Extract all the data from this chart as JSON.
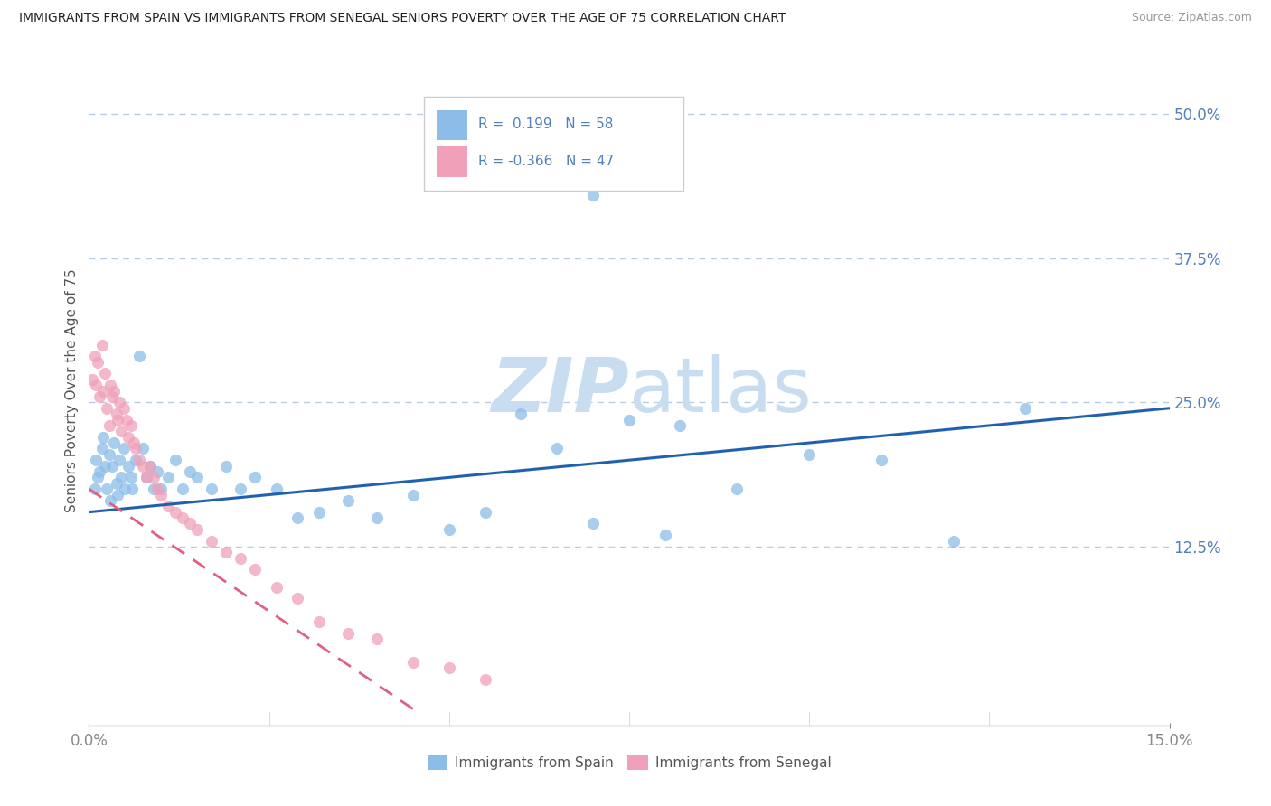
{
  "title": "IMMIGRANTS FROM SPAIN VS IMMIGRANTS FROM SENEGAL SENIORS POVERTY OVER THE AGE OF 75 CORRELATION CHART",
  "source": "Source: ZipAtlas.com",
  "ylabel": "Seniors Poverty Over the Age of 75",
  "xlim": [
    0.0,
    0.15
  ],
  "ylim": [
    -0.03,
    0.55
  ],
  "y_tick_vals": [
    0.125,
    0.25,
    0.375,
    0.5
  ],
  "y_tick_labels": [
    "12.5%",
    "25.0%",
    "37.5%",
    "50.0%"
  ],
  "x_tick_vals": [
    0.0,
    0.15
  ],
  "x_tick_labels": [
    "0.0%",
    "15.0%"
  ],
  "spain_color": "#8bbde8",
  "senegal_color": "#f0a0b8",
  "spain_line_color": "#2060b0",
  "senegal_line_color": "#e06080",
  "grid_color": "#b8cce4",
  "tick_color": "#5080c0",
  "watermark_color": "#c8ddf0",
  "legend_r_spain": "R =  0.199",
  "legend_n_spain": "N = 58",
  "legend_r_senegal": "R = -0.366",
  "legend_n_senegal": "N = 47",
  "legend_bottom_spain": "Immigrants from Spain",
  "legend_bottom_senegal": "Immigrants from Senegal",
  "spain_line_x": [
    0.0,
    0.15
  ],
  "spain_line_y": [
    0.155,
    0.245
  ],
  "senegal_line_x": [
    0.0,
    0.046
  ],
  "senegal_line_y": [
    0.175,
    -0.02
  ],
  "spain_x": [
    0.0008,
    0.001,
    0.0012,
    0.0015,
    0.0018,
    0.002,
    0.0022,
    0.0025,
    0.0028,
    0.003,
    0.0032,
    0.0035,
    0.0038,
    0.004,
    0.0042,
    0.0045,
    0.0048,
    0.005,
    0.0055,
    0.0058,
    0.006,
    0.0065,
    0.007,
    0.0075,
    0.008,
    0.0085,
    0.009,
    0.0095,
    0.01,
    0.011,
    0.012,
    0.013,
    0.014,
    0.015,
    0.017,
    0.019,
    0.021,
    0.023,
    0.026,
    0.029,
    0.032,
    0.036,
    0.04,
    0.045,
    0.05,
    0.055,
    0.06,
    0.065,
    0.07,
    0.075,
    0.08,
    0.09,
    0.1,
    0.11,
    0.12,
    0.13,
    0.07,
    0.082
  ],
  "spain_y": [
    0.175,
    0.2,
    0.185,
    0.19,
    0.21,
    0.22,
    0.195,
    0.175,
    0.205,
    0.165,
    0.195,
    0.215,
    0.18,
    0.17,
    0.2,
    0.185,
    0.21,
    0.175,
    0.195,
    0.185,
    0.175,
    0.2,
    0.29,
    0.21,
    0.185,
    0.195,
    0.175,
    0.19,
    0.175,
    0.185,
    0.2,
    0.175,
    0.19,
    0.185,
    0.175,
    0.195,
    0.175,
    0.185,
    0.175,
    0.15,
    0.155,
    0.165,
    0.15,
    0.17,
    0.14,
    0.155,
    0.24,
    0.21,
    0.145,
    0.235,
    0.135,
    0.175,
    0.205,
    0.2,
    0.13,
    0.245,
    0.43,
    0.23
  ],
  "senegal_x": [
    0.0005,
    0.0008,
    0.001,
    0.0012,
    0.0015,
    0.0018,
    0.002,
    0.0022,
    0.0025,
    0.0028,
    0.003,
    0.0032,
    0.0035,
    0.0038,
    0.004,
    0.0042,
    0.0045,
    0.0048,
    0.0052,
    0.0055,
    0.0058,
    0.0062,
    0.0065,
    0.007,
    0.0075,
    0.008,
    0.0085,
    0.009,
    0.0095,
    0.01,
    0.011,
    0.012,
    0.013,
    0.014,
    0.015,
    0.017,
    0.019,
    0.021,
    0.023,
    0.026,
    0.029,
    0.032,
    0.036,
    0.04,
    0.045,
    0.05,
    0.055
  ],
  "senegal_y": [
    0.27,
    0.29,
    0.265,
    0.285,
    0.255,
    0.3,
    0.26,
    0.275,
    0.245,
    0.23,
    0.265,
    0.255,
    0.26,
    0.24,
    0.235,
    0.25,
    0.225,
    0.245,
    0.235,
    0.22,
    0.23,
    0.215,
    0.21,
    0.2,
    0.195,
    0.185,
    0.195,
    0.185,
    0.175,
    0.17,
    0.16,
    0.155,
    0.15,
    0.145,
    0.14,
    0.13,
    0.12,
    0.115,
    0.105,
    0.09,
    0.08,
    0.06,
    0.05,
    0.045,
    0.025,
    0.02,
    0.01
  ]
}
